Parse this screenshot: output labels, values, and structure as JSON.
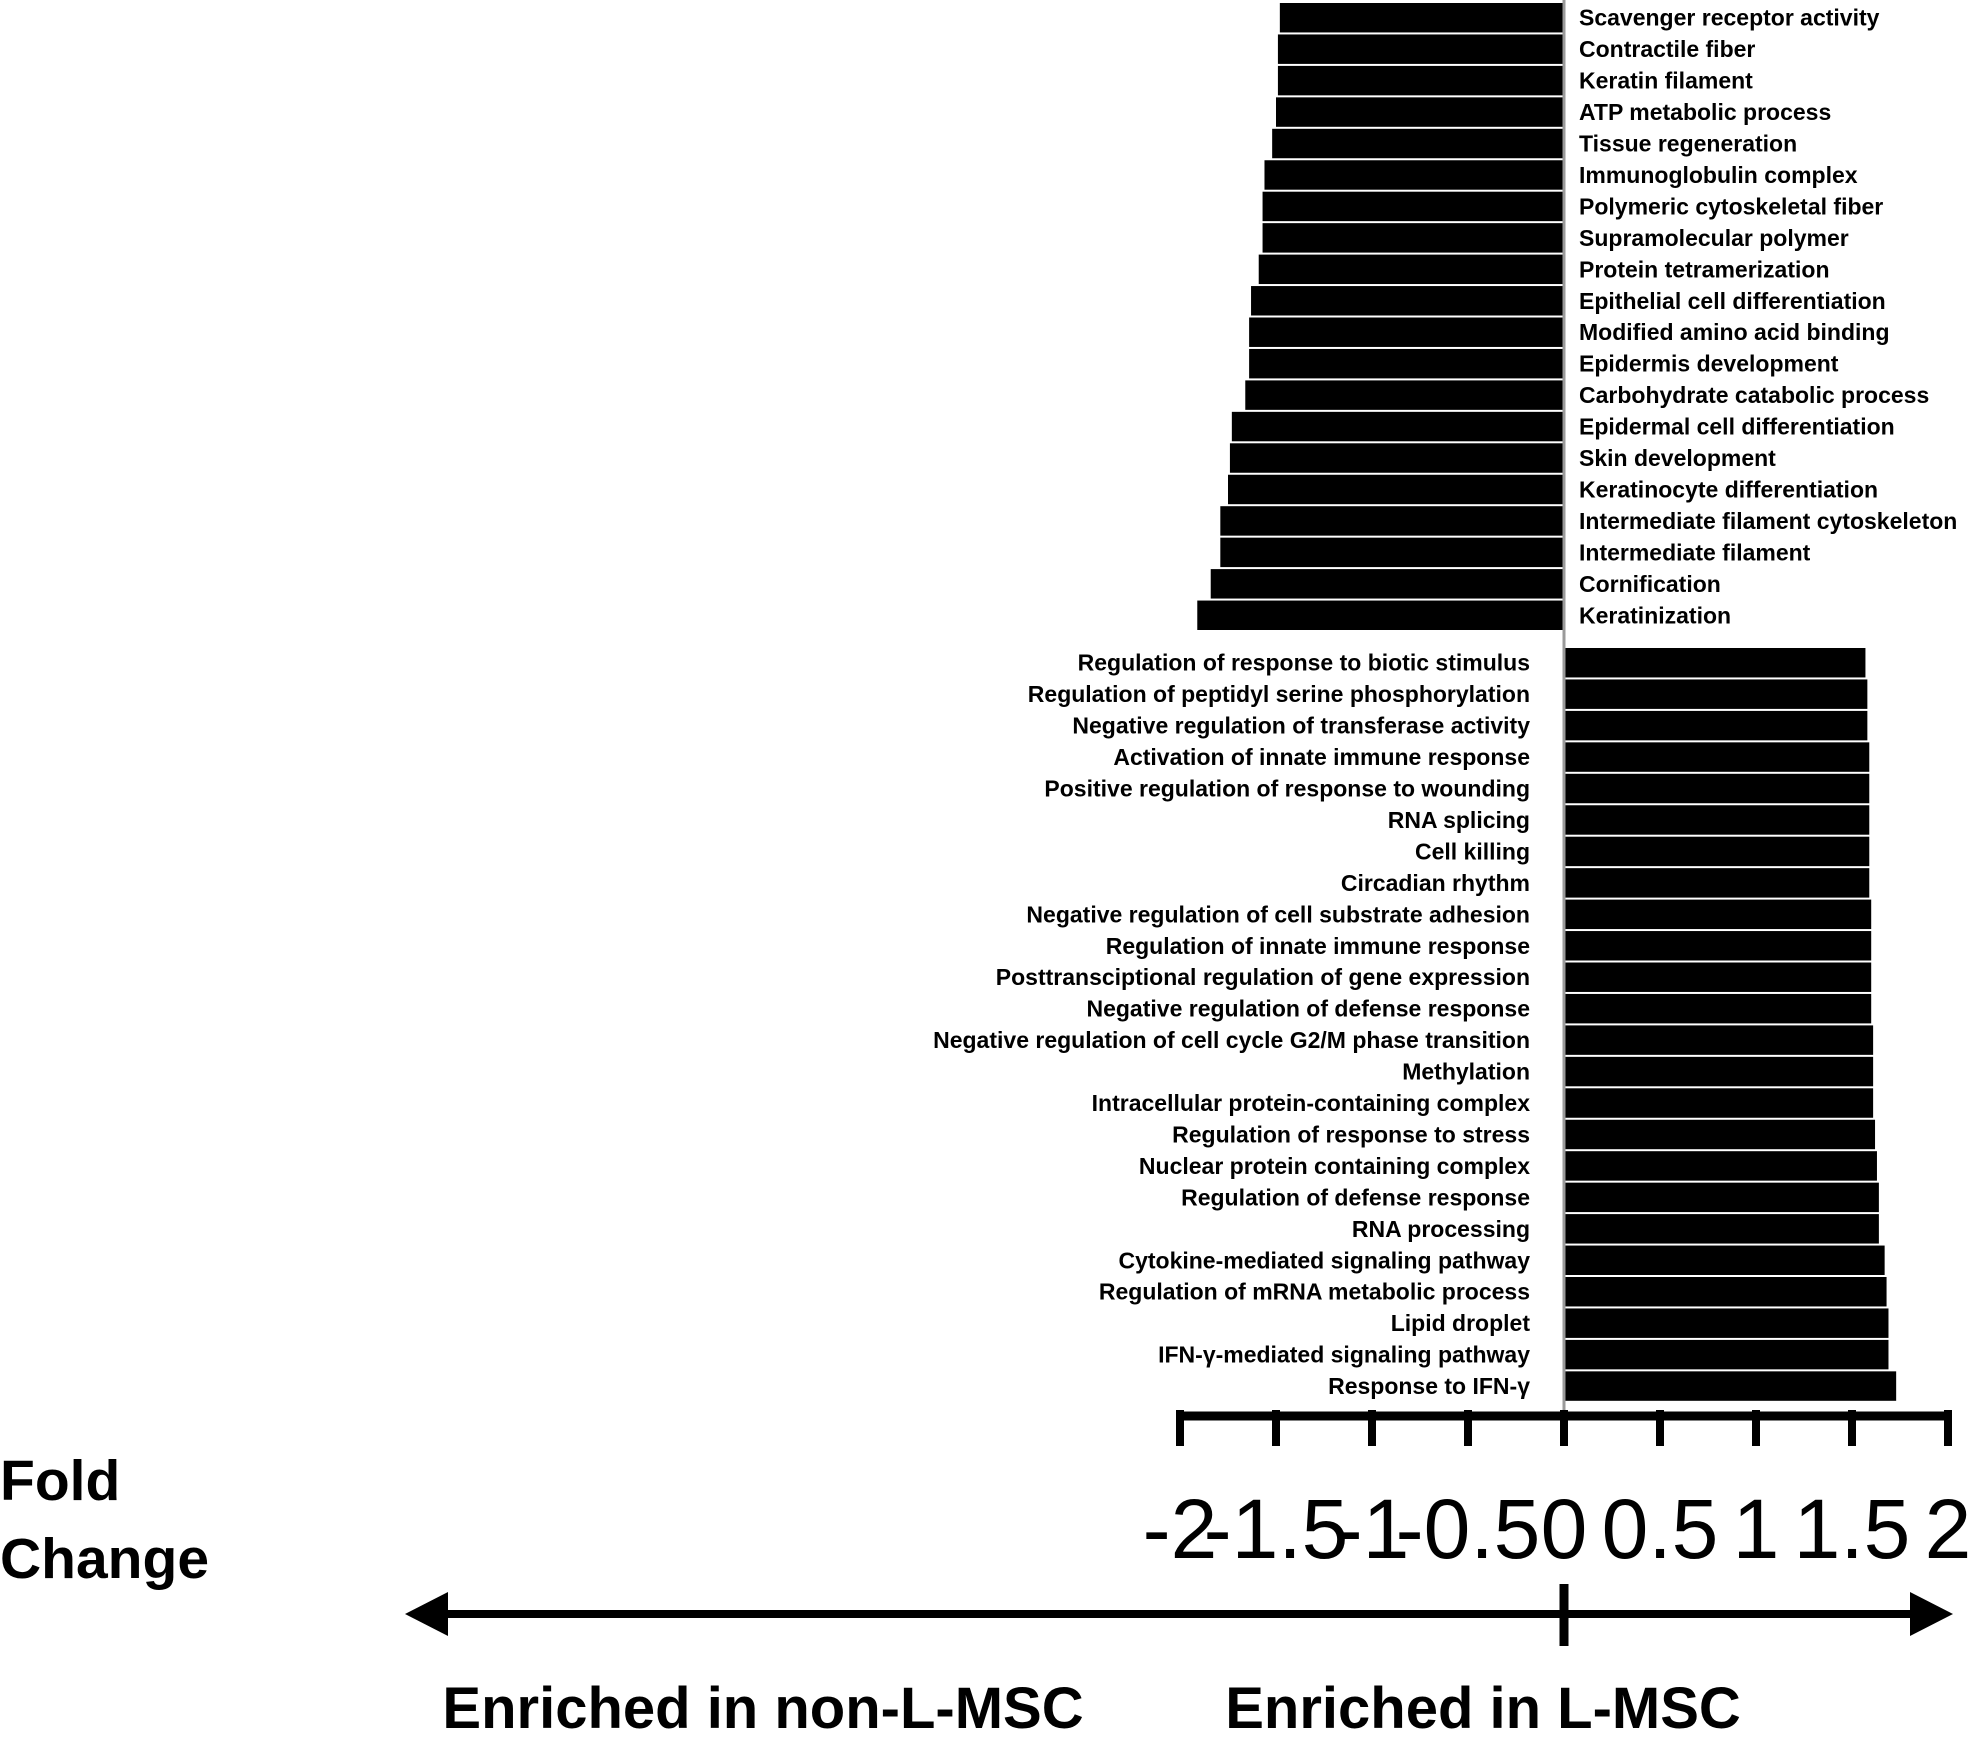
{
  "chart_data": {
    "type": "bar",
    "orientation": "horizontal",
    "categories": [
      "Scavenger receptor activity",
      "Contractile fiber",
      "Keratin filament",
      "ATP metabolic process",
      "Tissue regeneration",
      "Immunoglobulin complex",
      "Polymeric cytoskeletal fiber",
      "Supramolecular polymer",
      "Protein tetramerization",
      "Epithelial cell differentiation",
      "Modified amino acid binding",
      "Epidermis development",
      "Carbohydrate catabolic process",
      "Epidermal cell differentiation",
      "Skin development",
      "Keratinocyte differentiation",
      "Intermediate filament cytoskeleton",
      "Intermediate filament",
      "Cornification",
      "Keratinization",
      "Regulation of response to biotic stimulus",
      "Regulation of peptidyl serine phosphorylation",
      "Negative regulation of transferase activity",
      "Activation of innate immune response",
      "Positive regulation of response to wounding",
      "RNA splicing",
      "Cell killing",
      "Circadian rhythm",
      "Negative regulation of cell substrate adhesion",
      "Regulation of innate immune response",
      "Posttransciptional regulation of gene expression",
      "Negative regulation of defense response",
      "Negative regulation of cell cycle G2/M phase transition",
      "Methylation",
      "Intracellular protein-containing complex",
      "Regulation of response to stress",
      "Nuclear protein containing complex",
      "Regulation of defense response",
      "RNA processing",
      "Cytokine-mediated signaling pathway",
      "Regulation of mRNA metabolic process",
      "Lipid droplet",
      "IFN-γ-mediated signaling pathway",
      "Response to IFN-γ"
    ],
    "values": [
      -1.48,
      -1.49,
      -1.49,
      -1.5,
      -1.52,
      -1.56,
      -1.57,
      -1.57,
      -1.59,
      -1.63,
      -1.64,
      -1.64,
      -1.66,
      -1.73,
      -1.74,
      -1.75,
      -1.79,
      -1.79,
      -1.84,
      -1.91,
      1.57,
      1.58,
      1.58,
      1.59,
      1.59,
      1.59,
      1.59,
      1.59,
      1.6,
      1.6,
      1.6,
      1.6,
      1.61,
      1.61,
      1.61,
      1.62,
      1.63,
      1.64,
      1.64,
      1.67,
      1.68,
      1.69,
      1.69,
      1.73
    ],
    "xlim": [
      -2,
      2
    ],
    "xticks": [
      "-2",
      "-1.5",
      "-1",
      "-0.5",
      "0",
      "0.5",
      "1",
      "1.5",
      "2"
    ],
    "xlabel": [
      "Fold",
      "Change"
    ],
    "direction_labels": {
      "left": "Enriched in non-L-MSC",
      "right": "Enriched in L-MSC"
    },
    "bar_color": "#000000",
    "grid": false,
    "legend": "none"
  }
}
